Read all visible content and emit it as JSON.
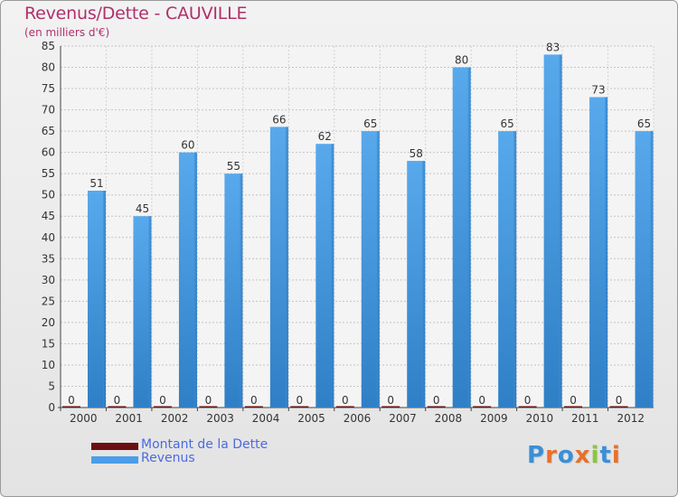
{
  "title": "Revenus/Dette - CAUVILLE",
  "subtitle": "(en milliers d'€)",
  "logo": "Proxiti",
  "colors": {
    "title": "#b0306a",
    "dette": "#6b0f12",
    "revenus": "#4a9ee8",
    "legend_text": "#4a6be0"
  },
  "chart_data": {
    "type": "bar",
    "categories": [
      "2000",
      "2001",
      "2002",
      "2003",
      "2004",
      "2005",
      "2006",
      "2007",
      "2008",
      "2009",
      "2010",
      "2011",
      "2012"
    ],
    "series": [
      {
        "name": "Montant de la Dette",
        "values": [
          0,
          0,
          0,
          0,
          0,
          0,
          0,
          0,
          0,
          0,
          0,
          0,
          0
        ]
      },
      {
        "name": "Revenus",
        "values": [
          51,
          45,
          60,
          55,
          66,
          62,
          65,
          58,
          80,
          65,
          83,
          73,
          65
        ]
      }
    ],
    "ylim": [
      0,
      85
    ],
    "yticks": [
      0,
      5,
      10,
      15,
      20,
      25,
      30,
      35,
      40,
      45,
      50,
      55,
      60,
      65,
      70,
      75,
      80,
      85
    ],
    "grid": true,
    "legend": "bottom-left"
  }
}
